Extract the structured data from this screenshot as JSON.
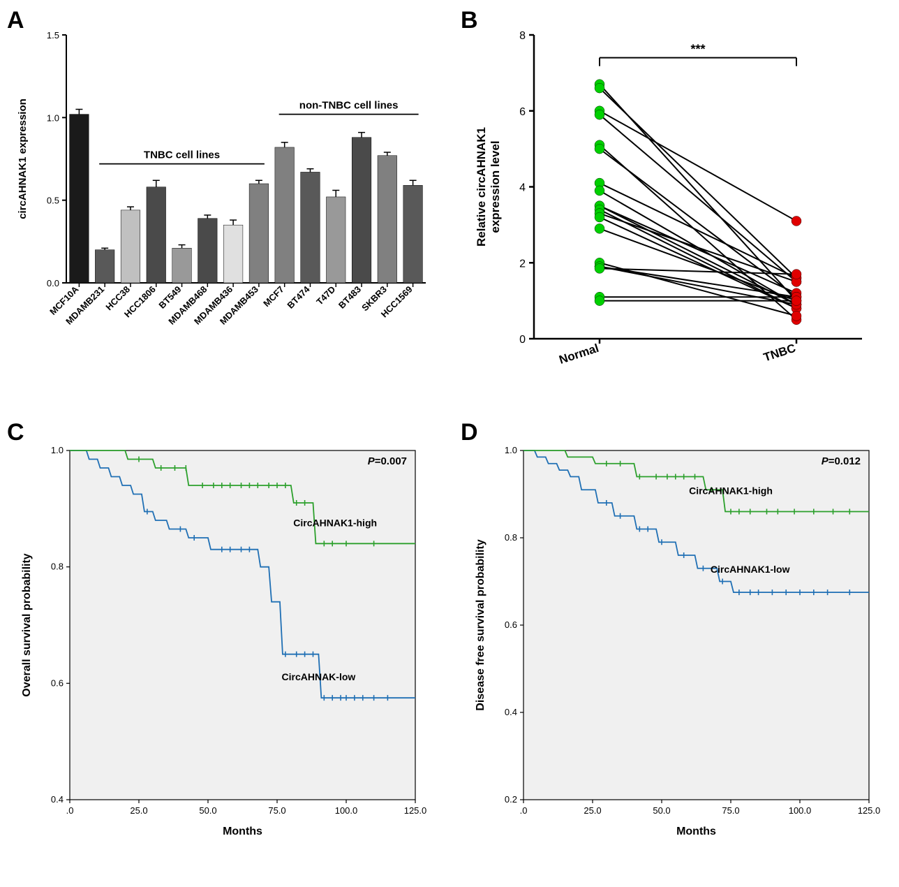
{
  "panelA": {
    "label": "A",
    "type": "bar",
    "ylabel": "circAHNAK1 expression",
    "ylim": [
      0,
      1.5
    ],
    "ytick_step": 0.5,
    "group_labels": {
      "tnbc": "TNBC cell lines",
      "nontnbc": "non-TNBC cell lines"
    },
    "bars": [
      {
        "label": "MCF10A",
        "value": 1.02,
        "err": 0.03,
        "color": "#1a1a1a"
      },
      {
        "label": "MDAMB231",
        "value": 0.2,
        "err": 0.01,
        "color": "#595959"
      },
      {
        "label": "HCC38",
        "value": 0.44,
        "err": 0.02,
        "color": "#c0c0c0"
      },
      {
        "label": "HCC1806",
        "value": 0.58,
        "err": 0.04,
        "color": "#4a4a4a"
      },
      {
        "label": "BT549",
        "value": 0.21,
        "err": 0.02,
        "color": "#999999"
      },
      {
        "label": "MDAMB468",
        "value": 0.39,
        "err": 0.02,
        "color": "#4a4a4a"
      },
      {
        "label": "MDAMB436",
        "value": 0.35,
        "err": 0.03,
        "color": "#e0e0e0"
      },
      {
        "label": "MDAMB453",
        "value": 0.6,
        "err": 0.02,
        "color": "#808080"
      },
      {
        "label": "MCF7",
        "value": 0.82,
        "err": 0.03,
        "color": "#808080"
      },
      {
        "label": "BT474",
        "value": 0.67,
        "err": 0.02,
        "color": "#595959"
      },
      {
        "label": "T47D",
        "value": 0.52,
        "err": 0.04,
        "color": "#999999"
      },
      {
        "label": "BT483",
        "value": 0.88,
        "err": 0.03,
        "color": "#4a4a4a"
      },
      {
        "label": "SKBR3",
        "value": 0.77,
        "err": 0.02,
        "color": "#808080"
      },
      {
        "label": "HCC1569",
        "value": 0.59,
        "err": 0.03,
        "color": "#595959"
      }
    ],
    "axis_color": "#000000",
    "label_fontsize": 15,
    "tick_fontsize": 13
  },
  "panelB": {
    "label": "B",
    "type": "paired-scatter",
    "ylabel": "Relative circAHNAK1\nexpression level",
    "xlabels": [
      "Normal",
      "TNBC"
    ],
    "ylim": [
      0,
      8
    ],
    "ytick_step": 2,
    "sig_label": "***",
    "sig_y": 7.4,
    "normal_color": "#00d000",
    "tnbc_color": "#e00000",
    "pairs": [
      {
        "normal": 6.7,
        "tnbc": 1.0
      },
      {
        "normal": 6.6,
        "tnbc": 1.6
      },
      {
        "normal": 6.0,
        "tnbc": 3.1
      },
      {
        "normal": 5.9,
        "tnbc": 1.5
      },
      {
        "normal": 5.1,
        "tnbc": 0.5
      },
      {
        "normal": 5.0,
        "tnbc": 1.1
      },
      {
        "normal": 4.1,
        "tnbc": 1.6
      },
      {
        "normal": 3.9,
        "tnbc": 0.9
      },
      {
        "normal": 3.5,
        "tnbc": 1.2
      },
      {
        "normal": 3.5,
        "tnbc": 0.9
      },
      {
        "normal": 3.4,
        "tnbc": 0.8
      },
      {
        "normal": 3.3,
        "tnbc": 1.5
      },
      {
        "normal": 3.2,
        "tnbc": 0.8
      },
      {
        "normal": 2.9,
        "tnbc": 1.0
      },
      {
        "normal": 2.0,
        "tnbc": 0.6
      },
      {
        "normal": 1.9,
        "tnbc": 0.9
      },
      {
        "normal": 1.9,
        "tnbc": 1.1
      },
      {
        "normal": 1.85,
        "tnbc": 1.7
      },
      {
        "normal": 1.1,
        "tnbc": 1.1
      },
      {
        "normal": 1.0,
        "tnbc": 1.0
      }
    ],
    "axis_color": "#000000"
  },
  "panelC": {
    "label": "C",
    "type": "kaplan-meier",
    "xlabel": "Months",
    "ylabel": "Overall survival probability",
    "p_value": "P=0.007",
    "xlim": [
      0,
      125
    ],
    "xtick_step": 25,
    "ylim": [
      0.4,
      1.0
    ],
    "ytick_step": 0.2,
    "plot_bg": "#f0f0f0",
    "curve_high": {
      "color": "#2ca02c",
      "label": "CircAHNAK1-high",
      "label_pos": {
        "x": 96,
        "y": 0.87
      },
      "points": [
        {
          "x": 0,
          "y": 1.0
        },
        {
          "x": 20,
          "y": 1.0
        },
        {
          "x": 21,
          "y": 0.985
        },
        {
          "x": 30,
          "y": 0.985
        },
        {
          "x": 31,
          "y": 0.97
        },
        {
          "x": 42,
          "y": 0.97
        },
        {
          "x": 43,
          "y": 0.94
        },
        {
          "x": 80,
          "y": 0.94
        },
        {
          "x": 81,
          "y": 0.91
        },
        {
          "x": 88,
          "y": 0.91
        },
        {
          "x": 89,
          "y": 0.84
        },
        {
          "x": 125,
          "y": 0.84
        }
      ],
      "censors": [
        25,
        33,
        38,
        42,
        48,
        52,
        55,
        58,
        62,
        65,
        68,
        72,
        75,
        78,
        82,
        85,
        92,
        95,
        100,
        110
      ]
    },
    "curve_low": {
      "color": "#1f6fb4",
      "label": "CircAHNAK-low",
      "label_pos": {
        "x": 90,
        "y": 0.605
      },
      "points": [
        {
          "x": 0,
          "y": 1.0
        },
        {
          "x": 6,
          "y": 1.0
        },
        {
          "x": 7,
          "y": 0.985
        },
        {
          "x": 10,
          "y": 0.985
        },
        {
          "x": 11,
          "y": 0.97
        },
        {
          "x": 14,
          "y": 0.97
        },
        {
          "x": 15,
          "y": 0.955
        },
        {
          "x": 18,
          "y": 0.955
        },
        {
          "x": 19,
          "y": 0.94
        },
        {
          "x": 22,
          "y": 0.94
        },
        {
          "x": 23,
          "y": 0.925
        },
        {
          "x": 26,
          "y": 0.925
        },
        {
          "x": 27,
          "y": 0.895
        },
        {
          "x": 30,
          "y": 0.895
        },
        {
          "x": 31,
          "y": 0.88
        },
        {
          "x": 35,
          "y": 0.88
        },
        {
          "x": 36,
          "y": 0.865
        },
        {
          "x": 42,
          "y": 0.865
        },
        {
          "x": 43,
          "y": 0.85
        },
        {
          "x": 50,
          "y": 0.85
        },
        {
          "x": 51,
          "y": 0.83
        },
        {
          "x": 68,
          "y": 0.83
        },
        {
          "x": 69,
          "y": 0.8
        },
        {
          "x": 72,
          "y": 0.8
        },
        {
          "x": 73,
          "y": 0.74
        },
        {
          "x": 76,
          "y": 0.74
        },
        {
          "x": 77,
          "y": 0.65
        },
        {
          "x": 90,
          "y": 0.65
        },
        {
          "x": 91,
          "y": 0.575
        },
        {
          "x": 125,
          "y": 0.575
        }
      ],
      "censors": [
        28,
        40,
        45,
        55,
        58,
        62,
        65,
        78,
        82,
        85,
        88,
        92,
        95,
        98,
        100,
        103,
        106,
        110,
        115
      ]
    }
  },
  "panelD": {
    "label": "D",
    "type": "kaplan-meier",
    "xlabel": "Months",
    "ylabel": "Disease free survival probability",
    "p_value": "P=0.012",
    "xlim": [
      0,
      125
    ],
    "xtick_step": 25,
    "ylim": [
      0.2,
      1.0
    ],
    "ytick_step": 0.2,
    "plot_bg": "#f0f0f0",
    "curve_high": {
      "color": "#2ca02c",
      "label": "CircAHNAK1-high",
      "label_pos": {
        "x": 75,
        "y": 0.9
      },
      "points": [
        {
          "x": 0,
          "y": 1.0
        },
        {
          "x": 15,
          "y": 1.0
        },
        {
          "x": 16,
          "y": 0.985
        },
        {
          "x": 25,
          "y": 0.985
        },
        {
          "x": 26,
          "y": 0.97
        },
        {
          "x": 40,
          "y": 0.97
        },
        {
          "x": 41,
          "y": 0.94
        },
        {
          "x": 65,
          "y": 0.94
        },
        {
          "x": 66,
          "y": 0.91
        },
        {
          "x": 72,
          "y": 0.91
        },
        {
          "x": 73,
          "y": 0.86
        },
        {
          "x": 125,
          "y": 0.86
        }
      ],
      "censors": [
        30,
        35,
        42,
        48,
        52,
        55,
        58,
        62,
        68,
        75,
        78,
        82,
        88,
        92,
        98,
        105,
        112,
        118
      ]
    },
    "curve_low": {
      "color": "#1f6fb4",
      "label": "CircAHNAK1-low",
      "label_pos": {
        "x": 82,
        "y": 0.72
      },
      "points": [
        {
          "x": 0,
          "y": 1.0
        },
        {
          "x": 4,
          "y": 1.0
        },
        {
          "x": 5,
          "y": 0.985
        },
        {
          "x": 8,
          "y": 0.985
        },
        {
          "x": 9,
          "y": 0.97
        },
        {
          "x": 12,
          "y": 0.97
        },
        {
          "x": 13,
          "y": 0.955
        },
        {
          "x": 16,
          "y": 0.955
        },
        {
          "x": 17,
          "y": 0.94
        },
        {
          "x": 20,
          "y": 0.94
        },
        {
          "x": 21,
          "y": 0.91
        },
        {
          "x": 26,
          "y": 0.91
        },
        {
          "x": 27,
          "y": 0.88
        },
        {
          "x": 32,
          "y": 0.88
        },
        {
          "x": 33,
          "y": 0.85
        },
        {
          "x": 40,
          "y": 0.85
        },
        {
          "x": 41,
          "y": 0.82
        },
        {
          "x": 48,
          "y": 0.82
        },
        {
          "x": 49,
          "y": 0.79
        },
        {
          "x": 55,
          "y": 0.79
        },
        {
          "x": 56,
          "y": 0.76
        },
        {
          "x": 62,
          "y": 0.76
        },
        {
          "x": 63,
          "y": 0.73
        },
        {
          "x": 70,
          "y": 0.73
        },
        {
          "x": 71,
          "y": 0.7
        },
        {
          "x": 75,
          "y": 0.7
        },
        {
          "x": 76,
          "y": 0.675
        },
        {
          "x": 125,
          "y": 0.675
        }
      ],
      "censors": [
        30,
        35,
        42,
        45,
        50,
        58,
        65,
        72,
        78,
        82,
        85,
        90,
        95,
        100,
        105,
        110,
        118
      ]
    }
  }
}
